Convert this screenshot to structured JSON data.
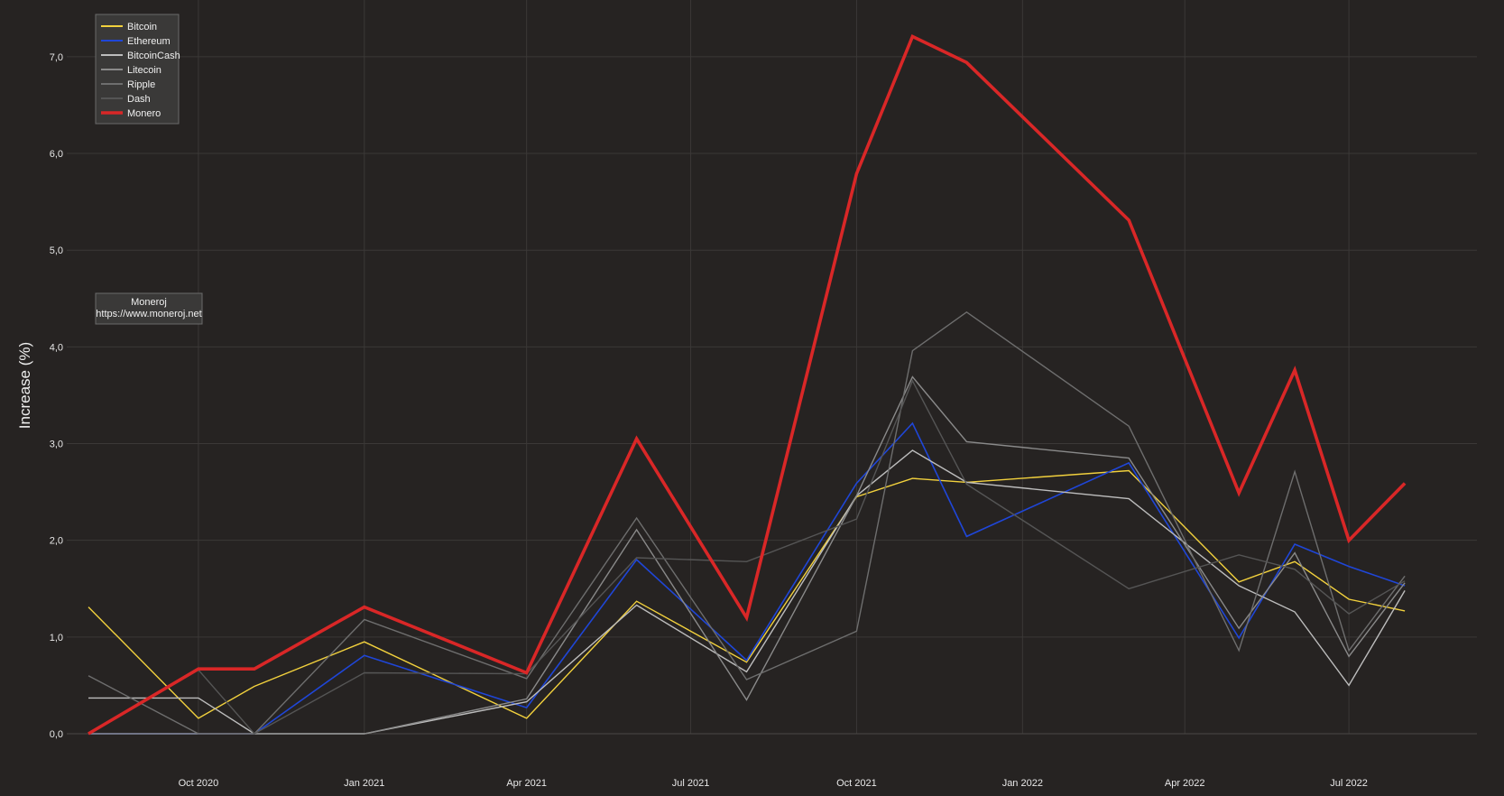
{
  "chart_data": {
    "type": "line",
    "xlabel": "",
    "ylabel": "Increase (%)",
    "ylim": [
      0,
      7.4
    ],
    "xlim": [
      "2020-07-20",
      "2022-09-10"
    ],
    "grid": true,
    "legend_position": "top-left",
    "x_ticks": [
      {
        "date": "2020-10-01",
        "label": "Oct 2020"
      },
      {
        "date": "2021-01-01",
        "label": "Jan 2021"
      },
      {
        "date": "2021-04-01",
        "label": "Apr 2021"
      },
      {
        "date": "2021-07-01",
        "label": "Jul 2021"
      },
      {
        "date": "2021-10-01",
        "label": "Oct 2021"
      },
      {
        "date": "2022-01-01",
        "label": "Jan 2022"
      },
      {
        "date": "2022-04-01",
        "label": "Apr 2022"
      },
      {
        "date": "2022-07-01",
        "label": "Jul 2022"
      }
    ],
    "y_ticks": [
      {
        "value": 0,
        "label": "0,0"
      },
      {
        "value": 1,
        "label": "1,0"
      },
      {
        "value": 2,
        "label": "2,0"
      },
      {
        "value": 3,
        "label": "3,0"
      },
      {
        "value": 4,
        "label": "4,0"
      },
      {
        "value": 5,
        "label": "5,0"
      },
      {
        "value": 6,
        "label": "6,0"
      },
      {
        "value": 7,
        "label": "7,0"
      }
    ],
    "x": [
      "2020-08-01",
      "2020-10-01",
      "2020-11-01",
      "2021-01-01",
      "2021-04-01",
      "2021-06-01",
      "2021-08-01",
      "2021-10-01",
      "2021-11-01",
      "2021-12-01",
      "2022-03-01",
      "2022-05-01",
      "2022-06-01",
      "2022-07-01",
      "2022-08-01"
    ],
    "series": [
      {
        "name": "Bitcoin",
        "color": "#f2d13d",
        "width": 1.4,
        "values": [
          1.31,
          0.16,
          0.49,
          0.95,
          0.16,
          1.37,
          0.74,
          2.45,
          2.64,
          2.6,
          2.72,
          1.57,
          1.78,
          1.39,
          1.27
        ]
      },
      {
        "name": "Ethereum",
        "color": "#1f46d8",
        "width": 1.6,
        "values": [
          0.0,
          0.0,
          0.0,
          0.81,
          0.27,
          1.8,
          0.76,
          2.59,
          3.21,
          2.04,
          2.8,
          0.99,
          1.96,
          1.73,
          1.53
        ]
      },
      {
        "name": "BitcoinCash",
        "color": "#bdbdbd",
        "width": 1.4,
        "values": [
          0.37,
          0.37,
          0.0,
          0.0,
          0.33,
          1.33,
          0.64,
          2.46,
          2.93,
          2.6,
          2.43,
          1.53,
          1.26,
          0.5,
          1.48
        ]
      },
      {
        "name": "Litecoin",
        "color": "#8a8a8a",
        "width": 1.4,
        "values": [
          0.0,
          0.0,
          0.0,
          0.0,
          0.36,
          2.11,
          0.35,
          2.46,
          3.69,
          3.02,
          2.85,
          1.09,
          1.87,
          0.8,
          1.56
        ]
      },
      {
        "name": "Ripple",
        "color": "#6e6e6e",
        "width": 1.4,
        "values": [
          0.6,
          0.0,
          0.0,
          1.18,
          0.57,
          2.23,
          0.56,
          1.06,
          3.96,
          4.36,
          3.18,
          0.86,
          2.71,
          0.86,
          1.63
        ]
      },
      {
        "name": "Dash",
        "color": "#555555",
        "width": 1.4,
        "values": [
          0.0,
          0.66,
          0.0,
          0.63,
          0.62,
          1.82,
          1.78,
          2.22,
          3.65,
          2.58,
          1.5,
          1.85,
          1.7,
          1.24,
          1.58
        ]
      },
      {
        "name": "Monero",
        "color": "#d92727",
        "width": 3.6,
        "values": [
          0.0,
          0.67,
          0.67,
          1.31,
          0.63,
          3.05,
          1.2,
          5.79,
          7.21,
          6.94,
          5.31,
          2.49,
          3.76,
          2.0,
          2.59
        ]
      }
    ]
  },
  "annotation": {
    "line1": "Moneroj",
    "line2": "https://www.moneroj.net"
  }
}
